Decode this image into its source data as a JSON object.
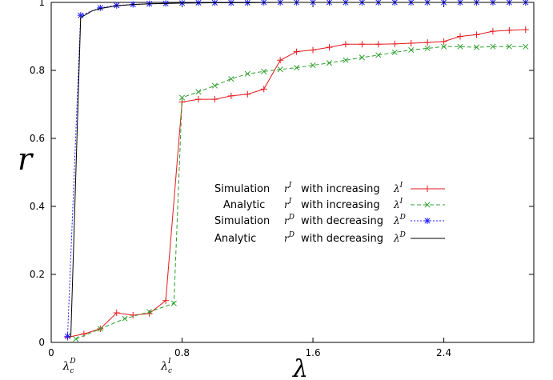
{
  "chart_data": {
    "type": "line",
    "xlim": [
      0,
      2.95
    ],
    "ylim": [
      0,
      1.0
    ],
    "xticks": [
      {
        "value": 0,
        "label": "0"
      },
      {
        "value": 0.8,
        "label": "0.8"
      },
      {
        "value": 1.6,
        "label": "1.6"
      },
      {
        "value": 2.4,
        "label": "2.4"
      }
    ],
    "yticks": [
      {
        "value": 0,
        "label": "0"
      },
      {
        "value": 0.2,
        "label": "0.2"
      },
      {
        "value": 0.4,
        "label": "0.4"
      },
      {
        "value": 0.6,
        "label": "0.6"
      },
      {
        "value": 0.8,
        "label": "0.8"
      },
      {
        "value": 1.0,
        "label": "1"
      }
    ],
    "xlabel": "λ",
    "ylabel": "r",
    "grid": false,
    "legend_position": "center-right",
    "annotations": [
      {
        "x": 0.1,
        "text": "λ",
        "sub": "c",
        "sup": "D"
      },
      {
        "x": 0.7,
        "text": "λ",
        "sub": "c",
        "sup": "I"
      }
    ],
    "series": [
      {
        "name_parts": [
          "Simulation",
          "r",
          "I",
          "with increasing",
          "λ",
          "I"
        ],
        "color": "#e41a1c",
        "dash": "solid",
        "marker": "plus",
        "x": [
          0.1,
          0.2,
          0.3,
          0.4,
          0.5,
          0.6,
          0.7,
          0.8,
          0.9,
          1.0,
          1.1,
          1.2,
          1.3,
          1.4,
          1.5,
          1.6,
          1.7,
          1.8,
          1.9,
          2.0,
          2.1,
          2.2,
          2.3,
          2.4,
          2.5,
          2.6,
          2.7,
          2.8,
          2.9
        ],
        "y": [
          0.015,
          0.025,
          0.04,
          0.087,
          0.08,
          0.085,
          0.123,
          0.707,
          0.715,
          0.715,
          0.725,
          0.73,
          0.745,
          0.83,
          0.855,
          0.86,
          0.868,
          0.877,
          0.877,
          0.877,
          0.878,
          0.88,
          0.882,
          0.885,
          0.9,
          0.905,
          0.915,
          0.918,
          0.92
        ]
      },
      {
        "name_parts": [
          "Analytic",
          "r",
          "I",
          "with increasing",
          "λ",
          "I"
        ],
        "color": "#2ca02c",
        "dash": "dashed",
        "marker": "x",
        "x": [
          0.15,
          0.3,
          0.45,
          0.6,
          0.75,
          0.8,
          0.9,
          1.0,
          1.1,
          1.2,
          1.3,
          1.4,
          1.5,
          1.6,
          1.7,
          1.8,
          1.9,
          2.0,
          2.1,
          2.2,
          2.3,
          2.4,
          2.5,
          2.6,
          2.7,
          2.8,
          2.9
        ],
        "y": [
          0.01,
          0.04,
          0.07,
          0.09,
          0.115,
          0.72,
          0.737,
          0.755,
          0.775,
          0.79,
          0.797,
          0.803,
          0.808,
          0.815,
          0.822,
          0.83,
          0.838,
          0.845,
          0.853,
          0.86,
          0.865,
          0.87,
          0.87,
          0.868,
          0.87,
          0.87,
          0.87
        ]
      },
      {
        "name_parts": [
          "Simulation",
          "r",
          "D",
          "with decreasing",
          "λ",
          "D"
        ],
        "color": "#1a1aff",
        "dash": "dotted",
        "marker": "star",
        "x": [
          0.1,
          0.18,
          0.3,
          0.4,
          0.5,
          0.6,
          0.7,
          0.8,
          0.9,
          1.0,
          1.1,
          1.2,
          1.3,
          1.4,
          1.5,
          1.6,
          1.7,
          1.8,
          1.9,
          2.0,
          2.1,
          2.2,
          2.3,
          2.4,
          2.5,
          2.6,
          2.7,
          2.8,
          2.9
        ],
        "y": [
          0.018,
          0.962,
          0.984,
          0.991,
          0.994,
          0.996,
          0.997,
          0.998,
          0.999,
          0.999,
          0.999,
          0.999,
          1.0,
          1.0,
          1.0,
          1.0,
          1.0,
          1.0,
          1.0,
          1.0,
          1.0,
          1.0,
          1.0,
          1.0,
          1.0,
          1.0,
          1.0,
          1.0,
          1.0
        ]
      },
      {
        "name_parts": [
          "Analytic",
          "r",
          "D",
          "with decreasing",
          "λ",
          "D"
        ],
        "color": "#000000",
        "dash": "solid",
        "marker": "none",
        "x": [
          0.12,
          0.18,
          0.25,
          0.3,
          0.4,
          0.5,
          0.6,
          0.8,
          1.0,
          1.2,
          1.4,
          1.6,
          1.8,
          2.0,
          2.2,
          2.4,
          2.6,
          2.8,
          2.95
        ],
        "y": [
          0.018,
          0.955,
          0.975,
          0.982,
          0.99,
          0.994,
          0.996,
          0.998,
          0.999,
          0.999,
          1.0,
          1.0,
          1.0,
          1.0,
          1.0,
          1.0,
          1.0,
          1.0,
          1.0
        ]
      }
    ]
  }
}
